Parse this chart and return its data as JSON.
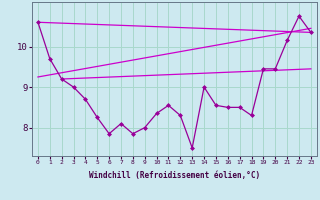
{
  "title": "",
  "xlabel": "Windchill (Refroidissement éolien,°C)",
  "ylabel": "",
  "background_color": "#cde9f0",
  "grid_color": "#a8d8cc",
  "line_color": "#990099",
  "line_color2": "#cc00cc",
  "hours": [
    0,
    1,
    2,
    3,
    4,
    5,
    6,
    7,
    8,
    9,
    10,
    11,
    12,
    13,
    14,
    15,
    16,
    17,
    18,
    19,
    20,
    21,
    22,
    23
  ],
  "windchill": [
    10.6,
    9.7,
    9.2,
    9.0,
    8.7,
    8.25,
    7.85,
    8.1,
    7.85,
    8.0,
    8.35,
    8.55,
    8.3,
    7.5,
    9.0,
    8.55,
    8.5,
    8.5,
    8.3,
    9.45,
    9.45,
    10.15,
    10.75,
    10.35
  ],
  "line1_x": [
    0,
    23
  ],
  "line1_y": [
    10.6,
    10.35
  ],
  "line2_x": [
    0,
    23
  ],
  "line2_y": [
    9.25,
    10.45
  ],
  "line3_x": [
    2,
    23
  ],
  "line3_y": [
    9.2,
    9.45
  ],
  "ylim": [
    7.3,
    11.1
  ],
  "yticks": [
    8,
    9,
    10
  ],
  "xticks": [
    0,
    1,
    2,
    3,
    4,
    5,
    6,
    7,
    8,
    9,
    10,
    11,
    12,
    13,
    14,
    15,
    16,
    17,
    18,
    19,
    20,
    21,
    22,
    23
  ]
}
